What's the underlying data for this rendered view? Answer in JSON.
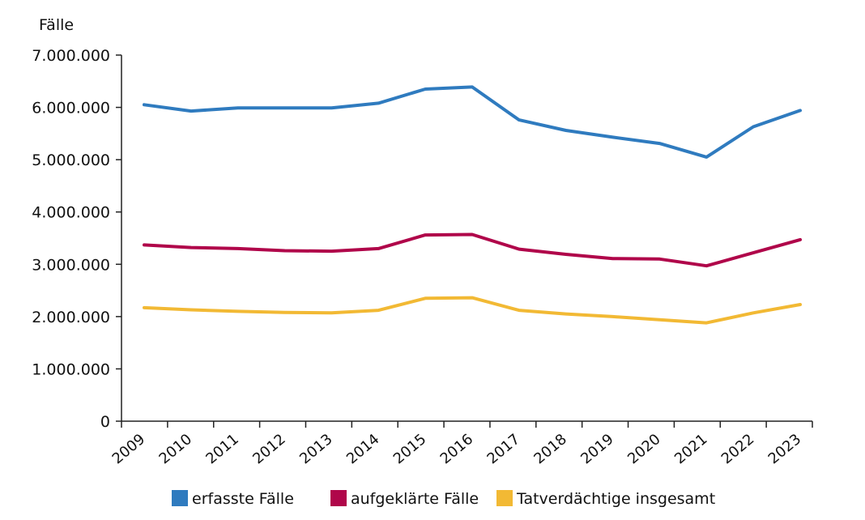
{
  "chart_data": {
    "type": "line",
    "title": "",
    "xlabel": "",
    "ylabel": "Fälle",
    "ylim": [
      0,
      7000000
    ],
    "y_ticks": [
      0,
      1000000,
      2000000,
      3000000,
      4000000,
      5000000,
      6000000,
      7000000
    ],
    "y_tick_labels": [
      "0",
      "1.000.000",
      "2.000.000",
      "3.000.000",
      "4.000.000",
      "5.000.000",
      "6.000.000",
      "7.000.000"
    ],
    "categories": [
      "2009",
      "2010",
      "2011",
      "2012",
      "2013",
      "2014",
      "2015",
      "2016",
      "2017",
      "2018",
      "2019",
      "2020",
      "2021",
      "2022",
      "2023"
    ],
    "grid": false,
    "legend_position": "bottom",
    "series": [
      {
        "name": "erfasste Fälle",
        "color": "#2f7bbf",
        "values": [
          6050000,
          5930000,
          5990000,
          5990000,
          5990000,
          6080000,
          6350000,
          6390000,
          5760000,
          5560000,
          5430000,
          5310000,
          5050000,
          5630000,
          5940000
        ]
      },
      {
        "name": "aufgeklärte Fälle",
        "color": "#b0064a",
        "values": [
          3370000,
          3320000,
          3300000,
          3260000,
          3250000,
          3300000,
          3560000,
          3570000,
          3290000,
          3190000,
          3110000,
          3100000,
          2970000,
          3220000,
          3470000
        ]
      },
      {
        "name": "Tatverdächtige insgesamt",
        "color": "#f2b934",
        "values": [
          2170000,
          2130000,
          2100000,
          2080000,
          2070000,
          2120000,
          2350000,
          2360000,
          2120000,
          2050000,
          2000000,
          1940000,
          1880000,
          2070000,
          2230000
        ]
      }
    ]
  }
}
